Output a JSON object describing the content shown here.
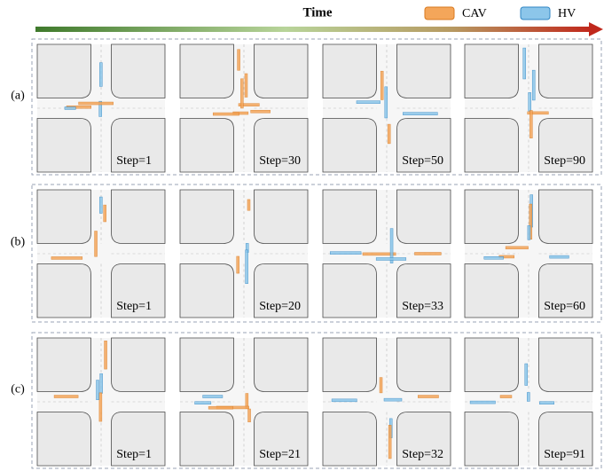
{
  "header": {
    "title": "Time",
    "legend": [
      "CAV",
      "HV"
    ]
  },
  "rows": [
    {
      "label": "(a)",
      "panels": [
        "Step=1",
        "Step=30",
        "Step=50",
        "Step=90"
      ]
    },
    {
      "label": "(b)",
      "panels": [
        "Step=1",
        "Step=20",
        "Step=33",
        "Step=60"
      ]
    },
    {
      "label": "(c)",
      "panels": [
        "Step=1",
        "Step=21",
        "Step=32",
        "Step=91"
      ]
    }
  ]
}
